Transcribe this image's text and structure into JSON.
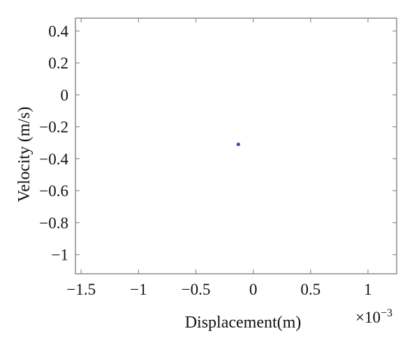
{
  "chart_data": {
    "type": "scatter",
    "title": "",
    "xlabel": "Displacement(m)",
    "ylabel": "Velocity (m/s)",
    "x_multiplier": "×10",
    "x_exponent": "−3",
    "x_ticks": [
      {
        "value": -1.5,
        "label": "−1.5"
      },
      {
        "value": -1.0,
        "label": "−1"
      },
      {
        "value": -0.5,
        "label": "−0.5"
      },
      {
        "value": 0.0,
        "label": "0"
      },
      {
        "value": 0.5,
        "label": "0.5"
      },
      {
        "value": 1.0,
        "label": "1"
      }
    ],
    "y_ticks": [
      {
        "value": 0.4,
        "label": "0.4"
      },
      {
        "value": 0.2,
        "label": "0.2"
      },
      {
        "value": 0.0,
        "label": "0"
      },
      {
        "value": -0.2,
        "label": "−0.2"
      },
      {
        "value": -0.4,
        "label": "−0.4"
      },
      {
        "value": -0.6,
        "label": "−0.6"
      },
      {
        "value": -0.8,
        "label": "−0.8"
      },
      {
        "value": -1.0,
        "label": "−1"
      }
    ],
    "xlim": [
      -1.55,
      1.25
    ],
    "ylim": [
      -1.12,
      0.48
    ],
    "grid": false,
    "points": [
      {
        "x": -0.13,
        "y": -0.31
      }
    ],
    "colors": {
      "marker": "#3c4ea0",
      "axis": "#8c8c8c",
      "text": "#111111"
    }
  }
}
